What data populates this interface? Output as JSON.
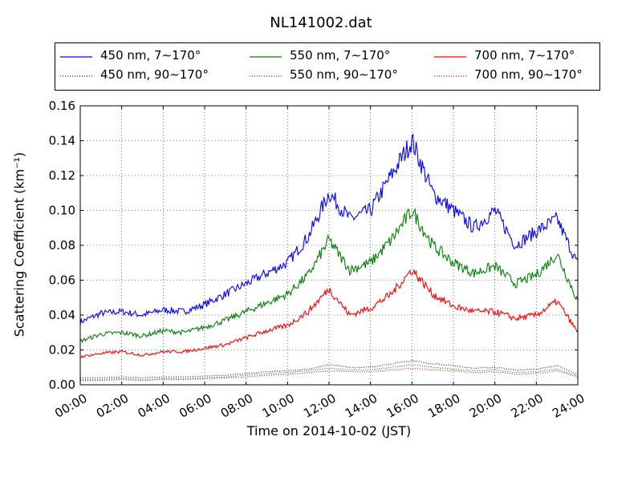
{
  "chart_data": {
    "type": "line",
    "title": "NL141002.dat",
    "xlabel": "Time on 2014-10-02 (JST)",
    "ylabel": "Scattering Coefficient (km⁻¹)",
    "xlim": [
      0,
      24
    ],
    "ylim": [
      0,
      0.16
    ],
    "x_ticks": [
      "00:00",
      "02:00",
      "04:00",
      "06:00",
      "08:00",
      "10:00",
      "12:00",
      "14:00",
      "16:00",
      "18:00",
      "20:00",
      "22:00",
      "24:00"
    ],
    "y_ticks": [
      "0.00",
      "0.02",
      "0.04",
      "0.06",
      "0.08",
      "0.10",
      "0.12",
      "0.14",
      "0.16"
    ],
    "grid": true,
    "legend_position": "top",
    "x": [
      0,
      1,
      2,
      3,
      4,
      5,
      6,
      7,
      8,
      9,
      10,
      11,
      12,
      13,
      14,
      15,
      16,
      17,
      18,
      19,
      20,
      21,
      22,
      23,
      24
    ],
    "series": [
      {
        "name": "450 nm, 7∼170°",
        "color": "#0000ff",
        "style": "solid",
        "values": [
          0.036,
          0.041,
          0.042,
          0.04,
          0.043,
          0.042,
          0.046,
          0.052,
          0.058,
          0.064,
          0.07,
          0.085,
          0.11,
          0.095,
          0.1,
          0.12,
          0.14,
          0.11,
          0.1,
          0.09,
          0.1,
          0.08,
          0.088,
          0.095,
          0.069
        ]
      },
      {
        "name": "450 nm, 90∼170°",
        "color": "#0000ff",
        "style": "dotted",
        "values": [
          0.004,
          0.004,
          0.0045,
          0.004,
          0.0045,
          0.0045,
          0.005,
          0.0055,
          0.0065,
          0.0075,
          0.008,
          0.009,
          0.0115,
          0.01,
          0.01,
          0.012,
          0.014,
          0.012,
          0.011,
          0.0095,
          0.01,
          0.0085,
          0.009,
          0.011,
          0.006
        ]
      },
      {
        "name": "550 nm, 7∼170°",
        "color": "#008000",
        "style": "solid",
        "values": [
          0.025,
          0.029,
          0.03,
          0.028,
          0.031,
          0.03,
          0.033,
          0.037,
          0.042,
          0.047,
          0.052,
          0.063,
          0.083,
          0.066,
          0.07,
          0.083,
          0.1,
          0.08,
          0.07,
          0.064,
          0.068,
          0.058,
          0.063,
          0.075,
          0.048
        ]
      },
      {
        "name": "550 nm, 90∼170°",
        "color": "#008000",
        "style": "dotted",
        "values": [
          0.003,
          0.003,
          0.0035,
          0.003,
          0.0035,
          0.0035,
          0.004,
          0.0045,
          0.0055,
          0.0065,
          0.007,
          0.008,
          0.0095,
          0.0085,
          0.0085,
          0.01,
          0.0115,
          0.01,
          0.009,
          0.008,
          0.0085,
          0.007,
          0.0075,
          0.009,
          0.005
        ]
      },
      {
        "name": "700 nm, 7∼170°",
        "color": "#ff0000",
        "style": "solid",
        "values": [
          0.016,
          0.018,
          0.019,
          0.017,
          0.019,
          0.019,
          0.021,
          0.023,
          0.027,
          0.031,
          0.034,
          0.042,
          0.055,
          0.04,
          0.044,
          0.052,
          0.066,
          0.052,
          0.045,
          0.042,
          0.042,
          0.038,
          0.04,
          0.048,
          0.03
        ]
      },
      {
        "name": "700 nm, 90∼170°",
        "color": "#ff0000",
        "style": "dotted",
        "values": [
          0.0025,
          0.0025,
          0.003,
          0.0025,
          0.003,
          0.003,
          0.0035,
          0.004,
          0.0045,
          0.0055,
          0.006,
          0.007,
          0.008,
          0.0075,
          0.0075,
          0.0085,
          0.0095,
          0.0085,
          0.008,
          0.007,
          0.0075,
          0.006,
          0.0065,
          0.008,
          0.0045
        ]
      }
    ]
  }
}
